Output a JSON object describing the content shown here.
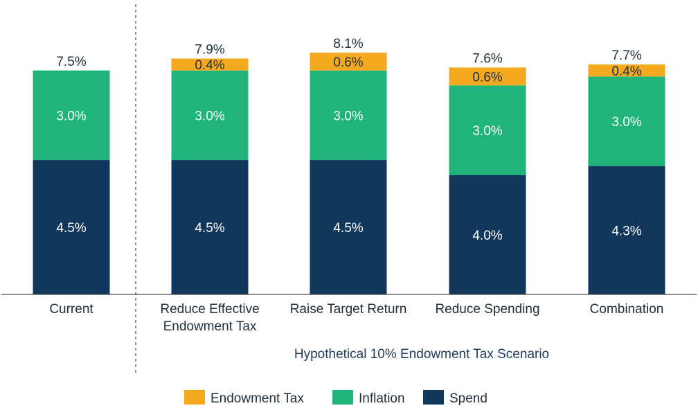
{
  "chart_data": {
    "type": "bar",
    "stacked": true,
    "categories": [
      [
        "Current"
      ],
      [
        "Reduce Effective",
        "Endowment Tax"
      ],
      [
        "Raise Target Return"
      ],
      [
        "Reduce Spending"
      ],
      [
        "Combination"
      ]
    ],
    "series": [
      {
        "name": "Spend",
        "values": [
          4.5,
          4.5,
          4.5,
          4.0,
          4.3
        ],
        "labels": [
          "4.5%",
          "4.5%",
          "4.5%",
          "4.0%",
          "4.3%"
        ],
        "color": "#12375c"
      },
      {
        "name": "Inflation",
        "values": [
          3.0,
          3.0,
          3.0,
          3.0,
          3.0
        ],
        "labels": [
          "3.0%",
          "3.0%",
          "3.0%",
          "3.0%",
          "3.0%"
        ],
        "color": "#1fb57a"
      },
      {
        "name": "Endowment Tax",
        "values": [
          0,
          0.4,
          0.6,
          0.6,
          0.4
        ],
        "labels": [
          "",
          "0.4%",
          "0.6%",
          "0.6%",
          "0.4%"
        ],
        "color": "#f5a91f"
      }
    ],
    "totals": [
      "7.5%",
      "7.9%",
      "8.1%",
      "7.6%",
      "7.7%"
    ],
    "group_label": "Hypothetical 10% Endowment Tax Scenario",
    "legend": [
      {
        "name": "Endowment Tax",
        "color": "#f5a91f"
      },
      {
        "name": "Inflation",
        "color": "#1fb57a"
      },
      {
        "name": "Spend",
        "color": "#12375c"
      }
    ],
    "legend_position": "bottom",
    "ylim": [
      0,
      8.1
    ],
    "grid": false
  }
}
